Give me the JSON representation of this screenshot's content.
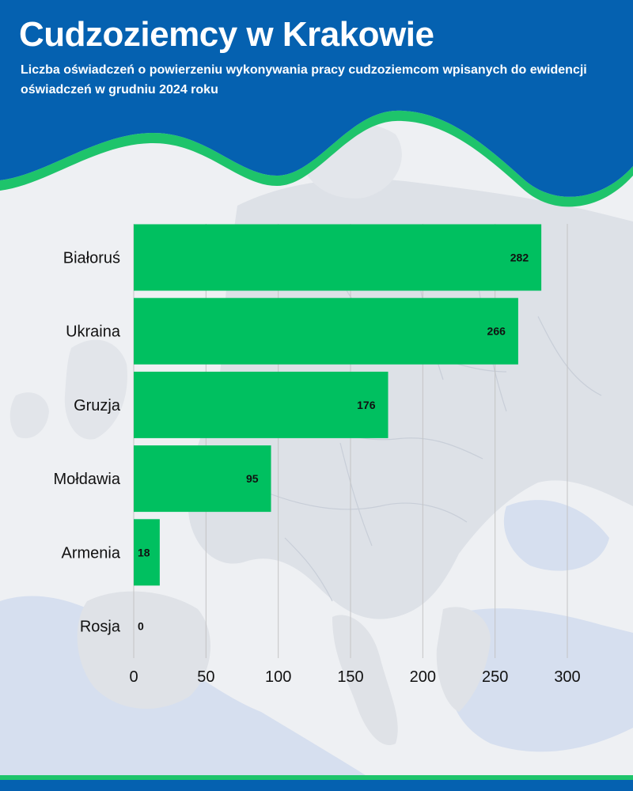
{
  "header": {
    "title": "Cudzoziemcy w Krakowie",
    "subtitle": "Liczba oświadczeń o powierzeniu wykonywania pracy cudzoziemcom wpisanych do ewidencji oświadczeń w grudniu 2024 roku"
  },
  "colors": {
    "header_blue": "#0561b0",
    "bar_green": "#00c060",
    "accent_green": "#1ec46b",
    "background": "#eef0f3",
    "map_land": "#dfe2e7",
    "map_sea": "#d6dfef"
  },
  "chart_data": {
    "type": "bar",
    "orientation": "horizontal",
    "categories": [
      "Białoruś",
      "Ukraina",
      "Gruzja",
      "Mołdawia",
      "Armenia",
      "Rosja"
    ],
    "values": [
      282,
      266,
      176,
      95,
      18,
      0
    ],
    "value_labels": [
      "282",
      "266",
      "176",
      "95",
      "18",
      "0"
    ],
    "xlim": [
      0,
      300
    ],
    "x_ticks": [
      0,
      50,
      100,
      150,
      200,
      250,
      300
    ],
    "x_tick_labels": [
      "0",
      "50",
      "100",
      "150",
      "200",
      "250",
      "300"
    ],
    "grid": "vertical",
    "title": "Cudzoziemcy w Krakowie",
    "xlabel": "",
    "ylabel": ""
  }
}
